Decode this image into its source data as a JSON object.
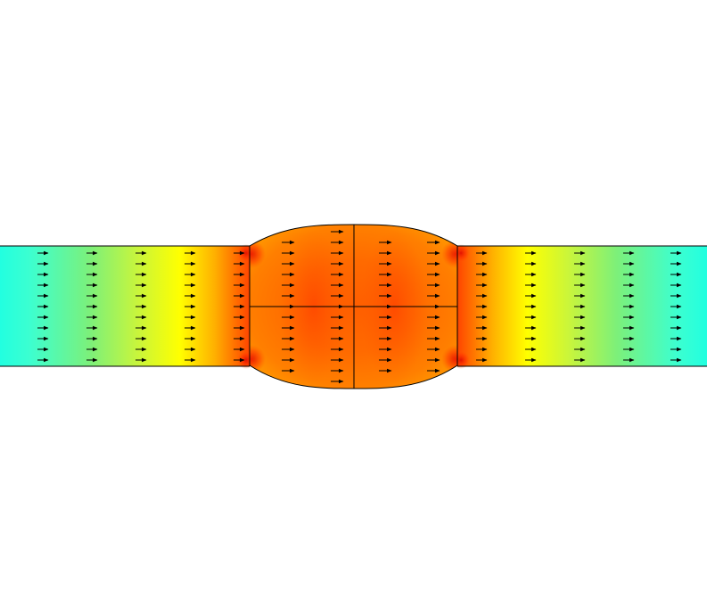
{
  "figure": {
    "kind": "2D flow field plot",
    "arrow_direction": "right",
    "colormap": "rainbow",
    "colors": {
      "inlet": "#22ffe0",
      "mid_green": "#7cf07a",
      "yellow": "#ffff00",
      "orange": "#ff9a00",
      "core": "#ff5a00",
      "hot": "#e81800",
      "edge": "#000000",
      "background": "#ffffff"
    }
  }
}
